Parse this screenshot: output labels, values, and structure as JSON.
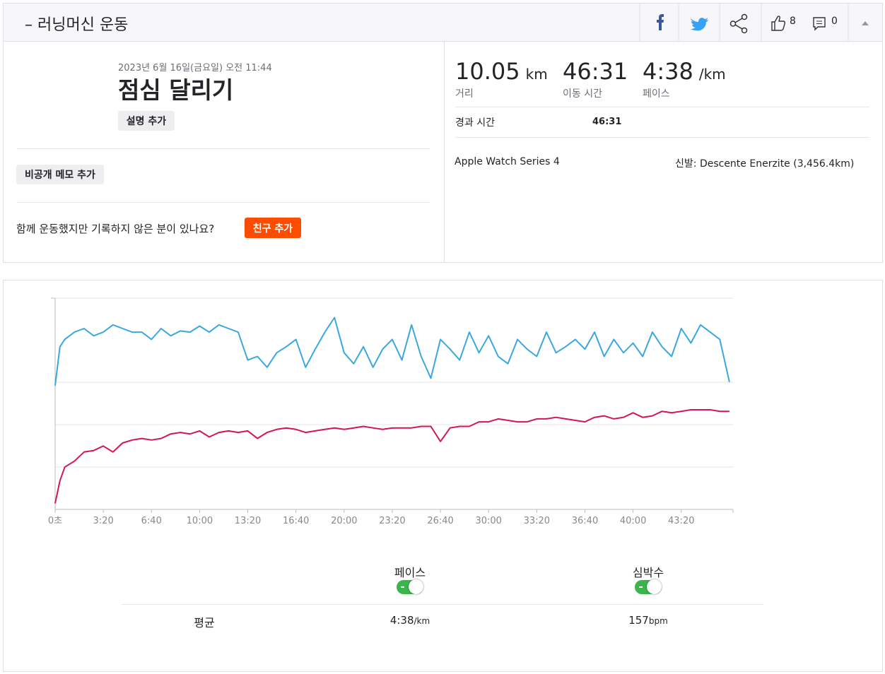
{
  "header": {
    "title": "– 러닝머신 운동",
    "kudos": 8,
    "comments": 0
  },
  "activity": {
    "date": "2023년 6월 16일(금요일) 오전 11:44",
    "name": "점심 달리기",
    "add_description": "설명 추가",
    "private_note": "비공개 메모 추가",
    "partner_prompt": "함께 운동했지만 기록하지 않은 분이 있나요?",
    "add_friend": "친구 추가"
  },
  "stats": {
    "primary": [
      {
        "value": "10.05",
        "unit": "km",
        "label": "거리"
      },
      {
        "value": "46:31",
        "label": "이동 시간"
      },
      {
        "value": "4:38",
        "unit": "/km",
        "label": "페이스"
      }
    ],
    "elapsed_label": "경과 시간",
    "elapsed_value": "46:31",
    "device": "Apple Watch Series 4",
    "shoes_label": "신발:",
    "shoes": "Descente Enerzite (3,456.4km)"
  },
  "chart_data": {
    "type": "line",
    "x": [
      0,
      20,
      40,
      80,
      120,
      160,
      200,
      240,
      280,
      320,
      360,
      400,
      440,
      480,
      520,
      560,
      600,
      640,
      680,
      720,
      760,
      800,
      840,
      880,
      920,
      960,
      1000,
      1040,
      1080,
      1120,
      1160,
      1200,
      1240,
      1280,
      1320,
      1360,
      1400,
      1440,
      1480,
      1520,
      1560,
      1600,
      1640,
      1680,
      1720,
      1760,
      1800,
      1840,
      1880,
      1920,
      1960,
      2000,
      2040,
      2080,
      2120,
      2160,
      2200,
      2240,
      2280,
      2320,
      2360,
      2400,
      2440,
      2480,
      2520,
      2560,
      2600,
      2640,
      2680,
      2720,
      2760,
      2800
    ],
    "xlim": [
      0,
      2815
    ],
    "xticks": [
      {
        "value": 0,
        "label": "0초"
      },
      {
        "value": 200,
        "label": "3:20"
      },
      {
        "value": 400,
        "label": "6:40"
      },
      {
        "value": 600,
        "label": "10:00"
      },
      {
        "value": 800,
        "label": "13:20"
      },
      {
        "value": 1000,
        "label": "16:40"
      },
      {
        "value": 1200,
        "label": "20:00"
      },
      {
        "value": 1400,
        "label": "23:20"
      },
      {
        "value": 1600,
        "label": "26:40"
      },
      {
        "value": 1800,
        "label": "30:00"
      },
      {
        "value": 2000,
        "label": "33:20"
      },
      {
        "value": 2200,
        "label": "36:40"
      },
      {
        "value": 2400,
        "label": "40:00"
      },
      {
        "value": 2600,
        "label": "43:20"
      }
    ],
    "ylim": [
      412,
      238
    ],
    "y2lim": [
      100,
      240
    ],
    "series": [
      {
        "name": "페이스",
        "color": "#3aa8de",
        "values": [
          310,
          278,
          272,
          266,
          263,
          269,
          266,
          260,
          263,
          266,
          266,
          272,
          263,
          269,
          265,
          266,
          261,
          266,
          260,
          263,
          266,
          289,
          286,
          295,
          283,
          278,
          272,
          295,
          280,
          266,
          254,
          283,
          292,
          278,
          295,
          280,
          272,
          289,
          260,
          286,
          304,
          272,
          280,
          289,
          266,
          283,
          269,
          286,
          292,
          272,
          280,
          286,
          266,
          283,
          278,
          272,
          280,
          266,
          286,
          272,
          283,
          275,
          286,
          266,
          278,
          286,
          263,
          275,
          260,
          266,
          272,
          307
        ]
      },
      {
        "name": "심박수",
        "color": "#d4145a",
        "axis": "y2",
        "values": [
          104,
          119,
          128,
          132,
          138,
          139,
          142,
          138,
          144,
          146,
          147,
          146,
          147,
          150,
          151,
          150,
          152,
          148,
          151,
          152,
          151,
          152,
          147,
          151,
          153,
          154,
          153,
          151,
          152,
          153,
          154,
          153,
          154,
          155,
          154,
          153,
          154,
          154,
          154,
          155,
          155,
          145,
          154,
          155,
          155,
          158,
          158,
          160,
          159,
          158,
          158,
          160,
          160,
          161,
          160,
          159,
          158,
          161,
          162,
          160,
          161,
          164,
          161,
          162,
          165,
          164,
          165,
          166,
          166,
          166,
          165,
          165
        ]
      }
    ]
  },
  "summary": {
    "label": "평균",
    "pace": "4:38",
    "pace_unit": "/km",
    "heart_rate": "157",
    "heart_rate_unit": "bpm"
  }
}
